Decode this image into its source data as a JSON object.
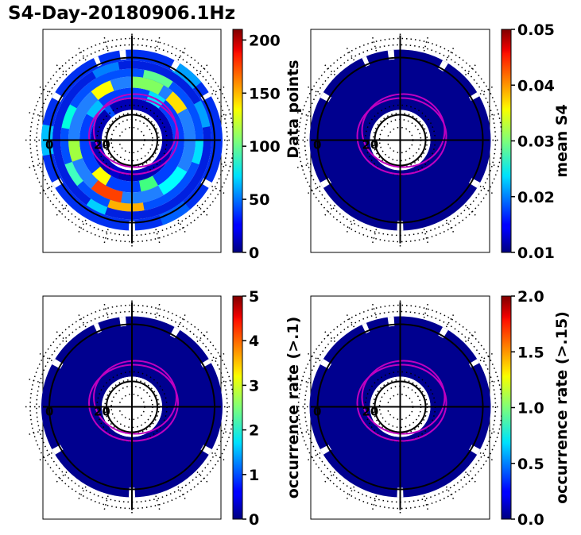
{
  "title": "S4-Day-20180906.1Hz",
  "colormap": "jet",
  "chart_data": [
    {
      "type": "heatmap",
      "projection": "polar",
      "panel": "top-left",
      "colorbar": {
        "label": "Data points",
        "range": [
          0,
          210
        ],
        "ticks": [
          "0",
          "50",
          "100",
          "150",
          "200"
        ],
        "tick_values": [
          0,
          50,
          100,
          150,
          200
        ]
      },
      "polar_labels": [
        "0",
        "20"
      ],
      "rings": [
        {
          "name": "inner-ring",
          "fill": "#0000b4",
          "sectors": [
            [
              200,
              214
            ],
            [
              268,
              271
            ],
            [
              318,
              327
            ]
          ],
          "sector_colors": [
            "#0000d0",
            "#00b0ff",
            "#0050ff"
          ]
        },
        {
          "name": "band-1",
          "fill": "#0040ff",
          "sectors": [
            [
              20,
              40
            ],
            [
              150,
              170
            ],
            [
              210,
              230
            ],
            [
              300,
              320
            ]
          ],
          "sector_colors": [
            "#00e0ff",
            "#40ff80",
            "#ffff00",
            "#00c0ff"
          ]
        },
        {
          "name": "band-2",
          "fill": "#2080ff",
          "sectors": [
            [
              0,
              30
            ],
            [
              40,
              60
            ],
            [
              120,
              150
            ],
            [
              190,
              220
            ],
            [
              250,
              270
            ],
            [
              320,
              340
            ]
          ],
          "sector_colors": [
            "#80ff60",
            "#ffe000",
            "#00ffff",
            "#ff4000",
            "#a0ff40",
            "#ffff00"
          ]
        },
        {
          "name": "band-3",
          "fill": "#0050ff",
          "sectors": [
            [
              10,
              35
            ],
            [
              90,
              110
            ],
            [
              170,
              200
            ],
            [
              230,
              250
            ],
            [
              280,
              300
            ]
          ],
          "sector_colors": [
            "#60ff90",
            "#00e0ff",
            "#ffb000",
            "#40ffc0",
            "#00ffe0"
          ]
        },
        {
          "name": "band-4",
          "fill": "#0020e0",
          "sectors": [
            [
              60,
              80
            ],
            [
              200,
              215
            ],
            [
              330,
              350
            ]
          ],
          "sector_colors": [
            "#00a0ff",
            "#00d0ff",
            "#0080ff"
          ]
        },
        {
          "name": "outer-ring",
          "fill": "#0030f0",
          "sectors": [
            [
              30,
              50
            ],
            [
              140,
              160
            ],
            [
              260,
              280
            ]
          ],
          "sector_colors": [
            "#00a0ff",
            "#0060ff",
            "#00c0ff"
          ]
        }
      ]
    },
    {
      "type": "heatmap",
      "projection": "polar",
      "panel": "top-right",
      "colorbar": {
        "label": "mean S4",
        "range": [
          0.01,
          0.05
        ],
        "ticks": [
          "0.01",
          "0.02",
          "0.03",
          "0.04",
          "0.05"
        ],
        "tick_values": [
          0.01,
          0.02,
          0.03,
          0.04,
          0.05
        ]
      },
      "polar_labels": [
        "0",
        "20"
      ],
      "rings": [
        {
          "name": "all",
          "fill": "#00008f",
          "sectors": [],
          "sector_colors": []
        }
      ]
    },
    {
      "type": "heatmap",
      "projection": "polar",
      "panel": "bottom-left",
      "colorbar": {
        "label": "occurrence rate (>.1)",
        "range": [
          0,
          5
        ],
        "ticks": [
          "0",
          "1",
          "2",
          "3",
          "4",
          "5"
        ],
        "tick_values": [
          0,
          1,
          2,
          3,
          4,
          5
        ]
      },
      "polar_labels": [
        "0",
        "20"
      ],
      "rings": [
        {
          "name": "all",
          "fill": "#00008f",
          "sectors": [],
          "sector_colors": []
        }
      ]
    },
    {
      "type": "heatmap",
      "projection": "polar",
      "panel": "bottom-right",
      "colorbar": {
        "label": "occurrence rate (>.15)",
        "range": [
          0,
          2
        ],
        "ticks": [
          "0.0",
          "0.5",
          "1.0",
          "1.5",
          "2.0"
        ],
        "tick_values": [
          0,
          0.5,
          1.0,
          1.5,
          2.0
        ]
      },
      "polar_labels": [
        "0",
        "20"
      ],
      "rings": [
        {
          "name": "all",
          "fill": "#00008f",
          "sectors": [],
          "sector_colors": []
        }
      ]
    }
  ]
}
